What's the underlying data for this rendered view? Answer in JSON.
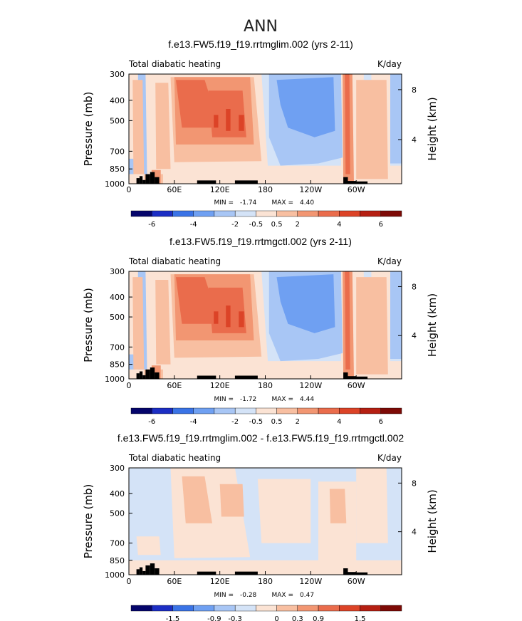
{
  "page": {
    "title": "ANN"
  },
  "colorbar_colors": [
    "#05056b",
    "#1c2ec4",
    "#3a73e6",
    "#6fa0f2",
    "#a8c6f5",
    "#d4e3f7",
    "#fbe3d4",
    "#f8bfa1",
    "#f29672",
    "#ea6c4c",
    "#dc4327",
    "#b51f12",
    "#7d0a06"
  ],
  "chart_data": [
    {
      "type": "heatmap",
      "title": "f.e13.FW5.f19_f19.rrtmglim.002 (yrs 2-11)",
      "left_label": "Total diabatic heating",
      "units": "K/day",
      "ylabel": "Pressure (mb)",
      "ylabel_right": "Height (km)",
      "y_ticks": [
        "300",
        "400",
        "500",
        "700",
        "850",
        "1000"
      ],
      "y_right_ticks": [
        "8",
        "4"
      ],
      "x_ticks": [
        "0",
        "60E",
        "120E",
        "180",
        "120W",
        "60W"
      ],
      "min_label": "MIN =",
      "min_value": "-1.74",
      "max_label": "MAX =",
      "max_value": "4.40",
      "colorbar_labels": [
        "-6",
        "-4",
        "-2",
        "-0.5",
        "0.5",
        "2",
        "4",
        "6"
      ],
      "field": "full"
    },
    {
      "type": "heatmap",
      "title": "f.e13.FW5.f19_f19.rrtmgctl.002 (yrs 2-11)",
      "left_label": "Total diabatic heating",
      "units": "K/day",
      "ylabel": "Pressure (mb)",
      "ylabel_right": "Height (km)",
      "y_ticks": [
        "300",
        "400",
        "500",
        "700",
        "850",
        "1000"
      ],
      "y_right_ticks": [
        "8",
        "4"
      ],
      "x_ticks": [
        "0",
        "60E",
        "120E",
        "180",
        "120W",
        "60W"
      ],
      "min_label": "MIN =",
      "min_value": "-1.72",
      "max_label": "MAX =",
      "max_value": "4.44",
      "colorbar_labels": [
        "-6",
        "-4",
        "-2",
        "-0.5",
        "0.5",
        "2",
        "4",
        "6"
      ],
      "field": "full"
    },
    {
      "type": "heatmap",
      "title": "f.e13.FW5.f19_f19.rrtmglim.002 - f.e13.FW5.f19_f19.rrtmgctl.002",
      "left_label": "Total diabatic heating",
      "units": "K/day",
      "ylabel": "Pressure (mb)",
      "ylabel_right": "Height (km)",
      "y_ticks": [
        "300",
        "400",
        "500",
        "700",
        "850",
        "1000"
      ],
      "y_right_ticks": [
        "8",
        "4"
      ],
      "x_ticks": [
        "0",
        "60E",
        "120E",
        "180",
        "120W",
        "60W"
      ],
      "min_label": "MIN =",
      "min_value": "-0.28",
      "max_label": "MAX =",
      "max_value": "0.47",
      "colorbar_labels": [
        "-1.5",
        "-0.9",
        "-0.3",
        "0",
        "0.3",
        "0.9",
        "1.5"
      ],
      "field": "diff"
    }
  ]
}
